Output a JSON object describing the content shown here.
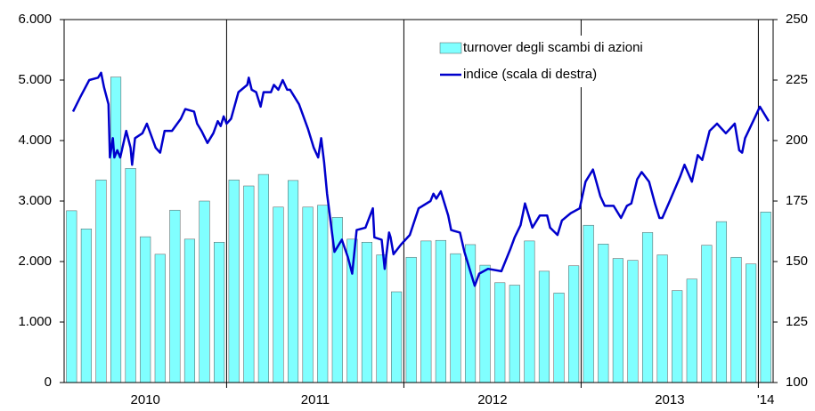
{
  "chart_data": {
    "type": "bar_line",
    "categories": [
      null,
      null,
      null,
      null,
      null,
      null,
      null,
      null,
      null,
      null,
      null,
      null,
      null,
      null,
      null,
      null,
      null,
      null,
      null,
      null,
      null,
      null,
      null,
      null,
      null,
      null,
      null,
      null,
      null,
      null,
      null,
      null,
      null,
      null,
      null,
      null,
      null,
      null,
      null,
      null,
      null,
      null,
      null,
      null,
      null,
      null,
      null,
      null
    ],
    "x_groups": [
      {
        "label": "2010",
        "start": 0,
        "end": 11
      },
      {
        "label": "2011",
        "start": 11,
        "end": 23
      },
      {
        "label": "2012",
        "start": 23,
        "end": 35
      },
      {
        "label": "2013",
        "start": 35,
        "end": 47
      },
      {
        "label": "'14",
        "start": 47,
        "end": 48
      }
    ],
    "xlim": [
      0,
      48
    ],
    "series": [
      {
        "name": "turnover degli scambi di azioni",
        "color": "#80ffff",
        "values": [
          2840,
          2540,
          3350,
          5050,
          3540,
          2410,
          2120,
          2850,
          2370,
          3000,
          2320,
          3350,
          3250,
          3440,
          2900,
          3340,
          2900,
          2930,
          2730,
          2370,
          2320,
          2110,
          1500,
          2070,
          2340,
          2350,
          2130,
          2280,
          1940,
          1650,
          1610,
          2340,
          1840,
          1480,
          1930,
          2600,
          2290,
          2050,
          2020,
          2480,
          2110,
          1520,
          1710,
          2270,
          2660,
          2070,
          1960,
          2820
        ]
      },
      {
        "name": "indice (scala di destra)",
        "color": "#0000cc",
        "axis": "y2",
        "x": [
          0.6,
          1.1,
          1.7,
          2.3,
          2.5,
          2.7,
          3.0,
          3.1,
          3.3,
          3.4,
          3.6,
          3.8,
          4.2,
          4.5,
          4.6,
          4.8,
          5.3,
          5.6,
          6.2,
          6.5,
          6.8,
          7.3,
          7.9,
          8.2,
          8.8,
          9.0,
          9.3,
          9.7,
          10.1,
          10.4,
          10.6,
          10.8,
          11.0,
          11.3,
          11.8,
          12.4,
          12.5,
          12.7,
          13.0,
          13.3,
          13.5,
          14.0,
          14.2,
          14.5,
          14.8,
          15.1,
          15.3,
          15.9,
          16.5,
          16.9,
          17.2,
          17.4,
          17.6,
          17.8,
          18.3,
          18.8,
          19.2,
          19.5,
          19.8,
          20.4,
          20.9,
          21.0,
          21.5,
          21.7,
          22.0,
          22.1,
          22.3,
          22.8,
          23.4,
          24.0,
          24.8,
          25.0,
          25.2,
          25.5,
          26.0,
          26.2,
          26.8,
          27.1,
          27.5,
          27.8,
          28.1,
          28.7,
          29.6,
          30.2,
          30.5,
          30.9,
          31.2,
          31.7,
          32.2,
          32.7,
          32.9,
          33.4,
          33.7,
          34.3,
          34.9,
          35.3,
          35.8,
          36.3,
          36.6,
          37.2,
          37.7,
          38.1,
          38.4,
          38.8,
          39.1,
          39.6,
          40.0,
          40.3,
          40.5,
          41.0,
          41.7,
          42.0,
          42.5,
          42.9,
          43.2,
          43.7,
          44.2,
          44.8,
          45.4,
          45.7,
          45.9,
          46.1,
          46.8,
          47.1,
          47.7
        ],
        "values": [
          212,
          218,
          225,
          226,
          228,
          222,
          215,
          193,
          201,
          193,
          196,
          193,
          204,
          197,
          190,
          201,
          203,
          207,
          197,
          195,
          204,
          204,
          209,
          213,
          212,
          207,
          204,
          199,
          203,
          208,
          206,
          210,
          207,
          209,
          220,
          223,
          226,
          221,
          220,
          214,
          220,
          220,
          223,
          221,
          225,
          221,
          221,
          215,
          205,
          197,
          193,
          201,
          191,
          178,
          154,
          159,
          152,
          145,
          163,
          164,
          172,
          160,
          159,
          147,
          162,
          160,
          153,
          157,
          161,
          172,
          175,
          178,
          176,
          179,
          169,
          163,
          162,
          154,
          146,
          140,
          145,
          147,
          146,
          155,
          160,
          165,
          174,
          164,
          169,
          169,
          164,
          161,
          167,
          170,
          172,
          183,
          188,
          177,
          173,
          173,
          168,
          173,
          174,
          184,
          187,
          183,
          174,
          168,
          168,
          175,
          185,
          190,
          183,
          194,
          192,
          204,
          207,
          203,
          207,
          196,
          195,
          201,
          210,
          214,
          208
        ]
      }
    ],
    "ylim": [
      0,
      6000
    ],
    "yticks": [
      0,
      {
        "value": 1000,
        "label": "1.000"
      },
      {
        "value": 2000,
        "label": "2.000"
      },
      {
        "value": 3000,
        "label": "3.000"
      },
      {
        "value": 4000,
        "label": "4.000"
      },
      {
        "value": 5000,
        "label": "5.000"
      },
      {
        "value": 6000,
        "label": "6.000"
      }
    ],
    "y2lim": [
      100,
      250
    ],
    "y2ticks": [
      100,
      125,
      150,
      175,
      200,
      225,
      250
    ],
    "legend": "top-right"
  }
}
